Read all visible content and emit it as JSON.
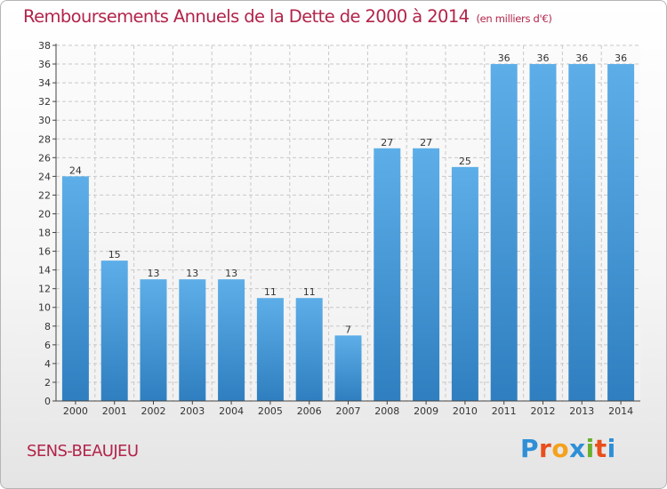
{
  "chart_data": {
    "type": "bar",
    "title": "Remboursements Annuels de la Dette de 2000 à 2014",
    "subtitle": "(en milliers d'€)",
    "categories": [
      "2000",
      "2001",
      "2002",
      "2003",
      "2004",
      "2005",
      "2006",
      "2007",
      "2008",
      "2009",
      "2010",
      "2011",
      "2012",
      "2013",
      "2014"
    ],
    "values": [
      24,
      15,
      13,
      13,
      13,
      11,
      11,
      7,
      27,
      27,
      25,
      36,
      36,
      36,
      36
    ],
    "xlabel": "",
    "ylabel": "",
    "ylim": [
      0,
      38
    ],
    "yticks": [
      0,
      2,
      4,
      6,
      8,
      10,
      12,
      14,
      16,
      18,
      20,
      22,
      24,
      26,
      28,
      30,
      32,
      34,
      36,
      38
    ],
    "grid": true
  },
  "footer": {
    "commune": "SENS-BEAUJEU",
    "brand": {
      "letters": [
        "P",
        "r",
        "o",
        "x",
        "i",
        "t",
        "i"
      ],
      "colors": [
        "#2e8fd6",
        "#e94e1b",
        "#f4a11d",
        "#2e8fd6",
        "#6ab02e",
        "#e94e1b",
        "#2e8fd6"
      ]
    }
  },
  "colors": {
    "title": "#b2244a",
    "bar_top": "#5daee8",
    "bar_bottom": "#2f7fc0",
    "grid": "#c8c8c8",
    "axis": "#444444"
  }
}
